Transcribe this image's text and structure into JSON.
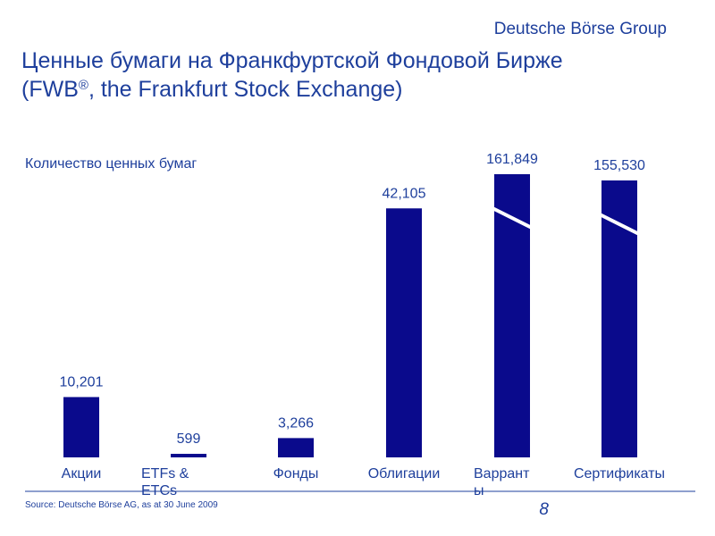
{
  "brand": "Deutsche Börse Group",
  "title_main": "Ценные бумаги на Франкфуртской Фондовой Бирже",
  "title_paren_open": "(FWB",
  "title_reg": "®",
  "title_paren_rest": ", the Frankfurt Stock Exchange)",
  "source": "Source: Deutsche Börse AG, as at 30 June 2009",
  "page_number": "8",
  "colors": {
    "bar": "#0a0a8c",
    "text": "#1e3f9c",
    "axis": "#1e3f9c"
  },
  "chart_data": {
    "type": "bar",
    "title": "Количество ценных бумаг",
    "xlabel": "",
    "ylabel": "",
    "categories": [
      [
        "Акции"
      ],
      [
        "ETFs &",
        "ETCs"
      ],
      [
        "Фонды"
      ],
      [
        "Облигации"
      ],
      [
        "Варрант",
        "ы"
      ],
      [
        "Сертификаты"
      ]
    ],
    "values": [
      10201,
      599,
      3266,
      42105,
      161849,
      155530
    ],
    "value_labels": [
      "10,201",
      "599",
      "3,266",
      "42,105",
      "161,849",
      "155,530"
    ],
    "broken_axis_bars": [
      4,
      5
    ],
    "grid": false,
    "legend": "none"
  }
}
